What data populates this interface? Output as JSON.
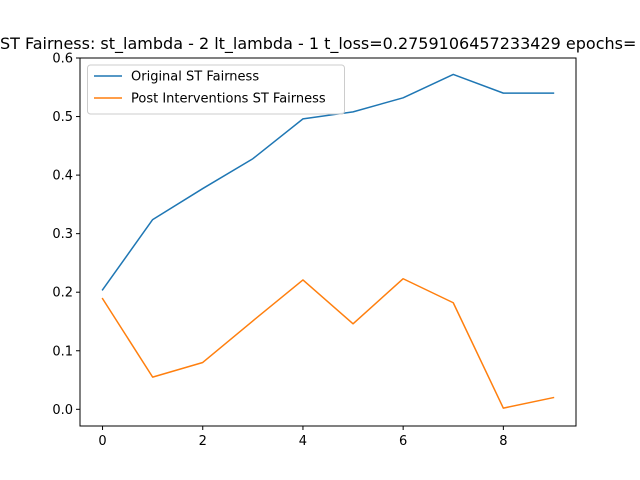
{
  "chart_data": {
    "type": "line",
    "title": "ST Fairness: st_lambda - 2 lt_lambda - 1 t_loss=0.2759106457233429 epochs=",
    "xlabel": "",
    "ylabel": "",
    "x": [
      0,
      1,
      2,
      3,
      4,
      5,
      6,
      7,
      8,
      9
    ],
    "xlim": [
      -0.45,
      9.45
    ],
    "ylim": [
      -0.0285,
      0.6
    ],
    "xticks": [
      0,
      2,
      4,
      6,
      8
    ],
    "yticks": [
      0.0,
      0.1,
      0.2,
      0.3,
      0.4,
      0.5,
      0.6
    ],
    "ytick_labels": [
      "0.0",
      "0.1",
      "0.2",
      "0.3",
      "0.4",
      "0.5",
      "0.6"
    ],
    "grid": false,
    "legend_position": "top-left",
    "series": [
      {
        "name": "Original ST Fairness",
        "color": "#1f77b4",
        "values": [
          0.204,
          0.324,
          0.377,
          0.428,
          0.496,
          0.508,
          0.532,
          0.572,
          0.54,
          0.54
        ]
      },
      {
        "name": "Post Interventions ST Fairness",
        "color": "#ff7f0e",
        "values": [
          0.189,
          0.055,
          0.08,
          0.151,
          0.221,
          0.146,
          0.223,
          0.182,
          0.002,
          0.02
        ]
      }
    ]
  }
}
